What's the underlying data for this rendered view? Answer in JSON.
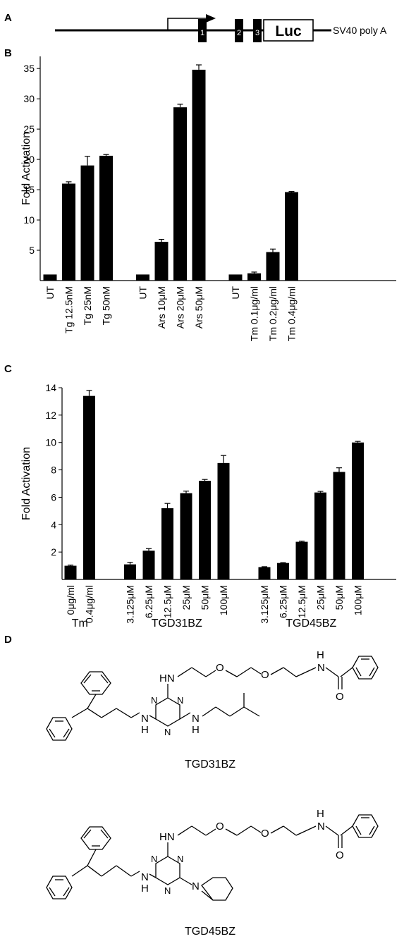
{
  "panels": {
    "a": "A",
    "b": "B",
    "c": "C",
    "d": "D"
  },
  "construct": {
    "exons": [
      "1",
      "2",
      "3"
    ],
    "reporter": "Luc",
    "polyA": "SV40 poly A"
  },
  "chart_data": [
    {
      "type": "bar",
      "panel": "B",
      "ylabel": "Fold Activation",
      "ylim": [
        0,
        37
      ],
      "yticks": [
        5,
        10,
        15,
        20,
        25,
        30,
        35
      ],
      "groups": [
        {
          "categories": [
            "UT",
            "Tg 12.5nM",
            "Tg 25nM",
            "Tg 50nM"
          ],
          "values": [
            1.0,
            16.0,
            19.0,
            20.6
          ],
          "errors": [
            0,
            0.3,
            1.5,
            0.2
          ]
        },
        {
          "categories": [
            "UT",
            "Ars 10μM",
            "Ars 20μM",
            "Ars 50μM"
          ],
          "values": [
            1.0,
            6.4,
            28.6,
            34.8
          ],
          "errors": [
            0,
            0.4,
            0.5,
            0.8
          ]
        },
        {
          "categories": [
            "UT",
            "Tm 0.1μg/ml",
            "Tm 0.2μg/ml",
            "Tm 0.4μg/ml"
          ],
          "values": [
            1.0,
            1.2,
            4.7,
            14.6
          ],
          "errors": [
            0,
            0.2,
            0.5,
            0.1
          ]
        }
      ]
    },
    {
      "type": "bar",
      "panel": "C",
      "ylabel": "Fold Activation",
      "ylim": [
        0,
        14
      ],
      "yticks": [
        2,
        4,
        6,
        8,
        10,
        12,
        14
      ],
      "groups": [
        {
          "name": "Tm",
          "categories": [
            "0μg/ml",
            "0.4μg/ml"
          ],
          "values": [
            1.0,
            13.4
          ],
          "errors": [
            0.05,
            0.4
          ]
        },
        {
          "name": "TGD31BZ",
          "categories": [
            "3.125μM",
            "6.25μM",
            "12.5μM",
            "25μM",
            "50μM",
            "100μM"
          ],
          "values": [
            1.1,
            2.1,
            5.2,
            6.3,
            7.2,
            8.5
          ],
          "errors": [
            0.15,
            0.15,
            0.35,
            0.15,
            0.1,
            0.55
          ]
        },
        {
          "name": "TGD45BZ",
          "categories": [
            "3.125μM",
            "6.25μM",
            "12.5μM",
            "25μM",
            "50μM",
            "100μM"
          ],
          "values": [
            0.9,
            1.2,
            2.75,
            6.35,
            7.85,
            10.0
          ],
          "errors": [
            0.03,
            0.03,
            0.05,
            0.08,
            0.3,
            0.08
          ]
        }
      ]
    }
  ],
  "structures": {
    "atoms": {
      "HN": "HN",
      "N": "N",
      "O": "O",
      "H": "H"
    },
    "compounds": [
      "TGD31BZ",
      "TGD45BZ"
    ]
  }
}
